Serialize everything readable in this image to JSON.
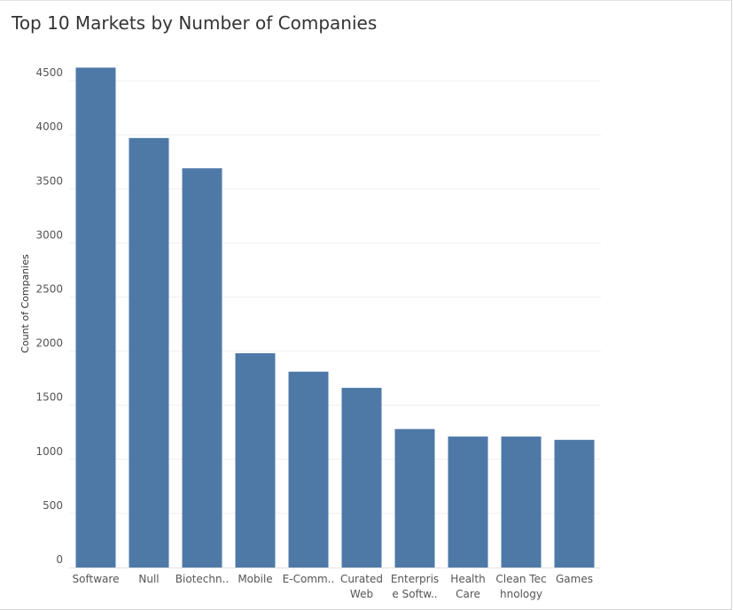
{
  "chart_data": {
    "type": "bar",
    "title": "Top 10 Markets by Number of Companies",
    "xlabel": "",
    "ylabel": "Count of Companies",
    "categories": [
      [
        "Software"
      ],
      [
        "Null"
      ],
      [
        "Biotechn.."
      ],
      [
        "Mobile"
      ],
      [
        "E-Comm.."
      ],
      [
        "Curated",
        "Web"
      ],
      [
        "Enterpris",
        "e Softw.."
      ],
      [
        "Health",
        "Care"
      ],
      [
        "Clean Tec",
        "hnology"
      ],
      [
        "Games"
      ]
    ],
    "values": [
      4620,
      3970,
      3690,
      1980,
      1810,
      1660,
      1280,
      1210,
      1210,
      1180
    ],
    "ylim": [
      0,
      4750
    ],
    "yticks": [
      0,
      500,
      1000,
      1500,
      2000,
      2500,
      3000,
      3500,
      4000,
      4500
    ],
    "grid": true,
    "bar_color": "#4e79a7",
    "gridline_color": "#efefef"
  }
}
